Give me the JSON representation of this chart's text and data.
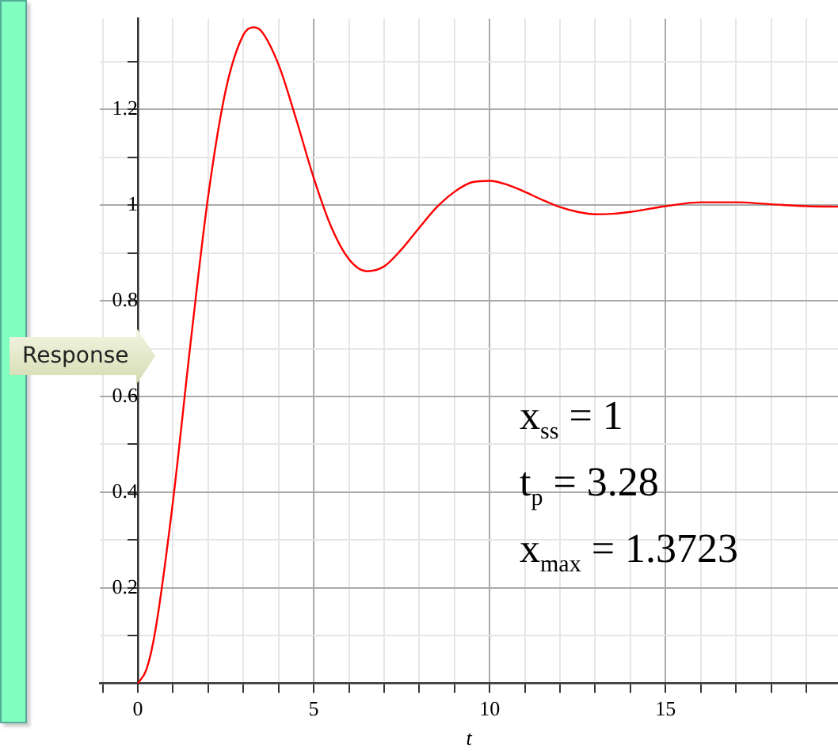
{
  "chart_data": {
    "type": "line",
    "xlabel": "t",
    "ylabel": "Response",
    "annotations": [
      "x$_{ss}$ = 1",
      "t$_{p}$ = 3.28",
      "x$_{max}$ = 1.3723"
    ],
    "series": [
      {
        "color": "#ff0000",
        "x": [
          0,
          0.25,
          0.5,
          1,
          1.5,
          2,
          2.5,
          3,
          3.28,
          3.5,
          4,
          4.5,
          5,
          5.5,
          6,
          6.5,
          7,
          7.5,
          8,
          8.5,
          9,
          9.5,
          10,
          10.5,
          11,
          11.5,
          12,
          12.5,
          13,
          13.5,
          14,
          15,
          16,
          17,
          18,
          19,
          19.9
        ],
        "values": [
          0,
          0.03,
          0.111,
          0.381,
          0.712,
          1.019,
          1.241,
          1.356,
          1.372,
          1.365,
          1.294,
          1.18,
          1.057,
          0.954,
          0.887,
          0.862,
          0.872,
          0.908,
          0.953,
          0.996,
          1.028,
          1.048,
          1.051,
          1.043,
          1.028,
          1.011,
          0.996,
          0.986,
          0.981,
          0.982,
          0.986,
          0.998,
          1.006,
          1.006,
          1.002,
          0.998,
          0.997
        ]
      }
    ],
    "xlim": [
      -1.08,
      19.9
    ],
    "ylim": [
      0,
      1.39
    ],
    "xticks": [
      {
        "value": -1,
        "label": null
      },
      0,
      {
        "value": 1,
        "label": null
      },
      {
        "value": 2,
        "label": null
      },
      {
        "value": 3,
        "label": null
      },
      {
        "value": 4,
        "label": null
      },
      5,
      {
        "value": 6,
        "label": null
      },
      {
        "value": 7,
        "label": null
      },
      {
        "value": 8,
        "label": null
      },
      {
        "value": 9,
        "label": null
      },
      10,
      {
        "value": 11,
        "label": null
      },
      {
        "value": 12,
        "label": null
      },
      {
        "value": 13,
        "label": null
      },
      {
        "value": 14,
        "label": null
      },
      15,
      {
        "value": 16,
        "label": null
      },
      {
        "value": 17,
        "label": null
      },
      {
        "value": 18,
        "label": null
      },
      {
        "value": 19,
        "label": null
      }
    ],
    "yticks": [
      {
        "value": 0.1,
        "label": null
      },
      0.2,
      {
        "value": 0.3,
        "label": null
      },
      0.4,
      {
        "value": 0.5,
        "label": null
      },
      0.6,
      {
        "value": 0.7,
        "label": null
      },
      0.8,
      {
        "value": 0.9,
        "label": null
      },
      1,
      {
        "value": 1.1,
        "label": null
      },
      1.2,
      {
        "value": 1.3,
        "label": null
      }
    ],
    "grid": true,
    "legend": false,
    "marker": "none",
    "line_style": "solid"
  }
}
